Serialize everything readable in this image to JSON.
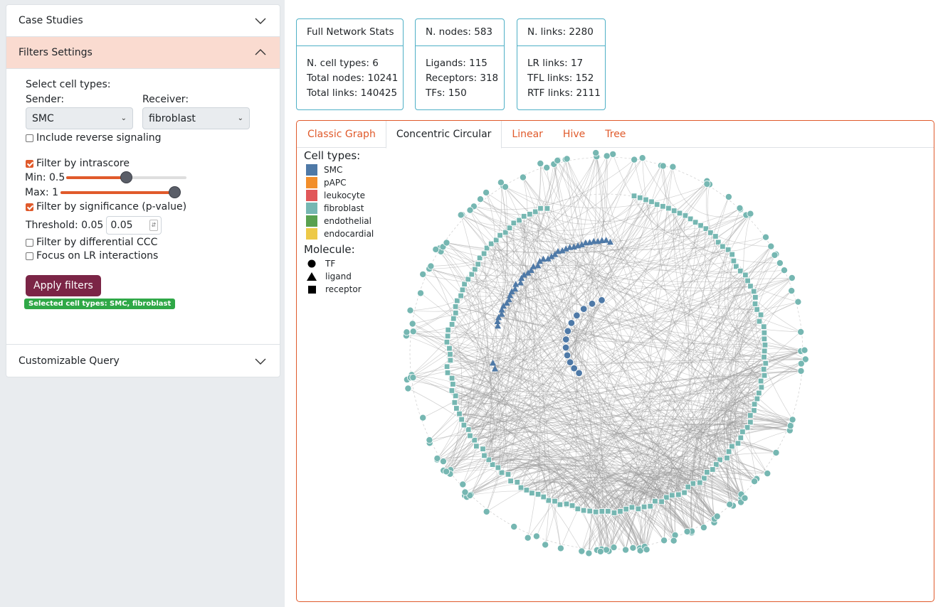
{
  "sidebar": {
    "case_studies": "Case Studies",
    "filters_settings": "Filters Settings",
    "customizable_query": "Customizable Query",
    "select_cell_types": "Select cell types:",
    "sender_label": "Sender:",
    "receiver_label": "Receiver:",
    "sender_value": "SMC",
    "receiver_value": "fibroblast",
    "include_reverse": "Include reverse signaling",
    "include_reverse_checked": false,
    "filter_intrascore": "Filter by intrascore",
    "filter_intrascore_checked": true,
    "min_label": "Min: 0.5",
    "min_value": 0.5,
    "max_label": "Max: 1",
    "max_value": 1,
    "filter_significance": "Filter by significance (p-value)",
    "filter_significance_checked": true,
    "threshold_label": "Threshold: 0.05",
    "threshold_value": "0.05",
    "filter_differential": "Filter by differential CCC",
    "filter_differential_checked": false,
    "focus_lr": "Focus on LR interactions",
    "focus_lr_checked": false,
    "apply_button": "Apply filters",
    "selected_badge": "Selected cell types: SMC, fibroblast"
  },
  "stats": {
    "full": {
      "title": "Full Network Stats",
      "line1": "N. cell types: 6",
      "line2": "Total nodes: 10241",
      "line3": "Total links: 140425"
    },
    "nodes": {
      "title": "N. nodes: 583",
      "line1": "Ligands: 115",
      "line2": "Receptors: 318",
      "line3": "TFs: 150"
    },
    "links": {
      "title": "N. links: 2280",
      "line1": "LR links: 17",
      "line2": "TFL links: 152",
      "line3": "RTF links: 2111"
    }
  },
  "tabs": [
    "Classic Graph",
    "Concentric Circular",
    "Linear",
    "Hive",
    "Tree"
  ],
  "active_tab": "Concentric Circular",
  "legend": {
    "cell_types_title": "Cell types:",
    "cell_types": [
      {
        "name": "SMC",
        "color": "#4e79a7"
      },
      {
        "name": "pAPC",
        "color": "#f28e2b"
      },
      {
        "name": "leukocyte",
        "color": "#e15759"
      },
      {
        "name": "fibroblast",
        "color": "#76b7b2"
      },
      {
        "name": "endothelial",
        "color": "#59a14f"
      },
      {
        "name": "endocardial",
        "color": "#edc948"
      }
    ],
    "molecule_title": "Molecule:",
    "molecules": [
      {
        "name": "TF",
        "icon": "circle-icon"
      },
      {
        "name": "ligand",
        "icon": "triangle-icon"
      },
      {
        "name": "receptor",
        "icon": "square-icon"
      }
    ]
  },
  "colors": {
    "accent": "#e05a2b",
    "stat_border": "#4fb0c6",
    "apply_button": "#7b2546",
    "badge": "#2fa847",
    "smc": "#4e79a7",
    "fibroblast": "#76b7b2",
    "edge": "#9a9a9a"
  }
}
